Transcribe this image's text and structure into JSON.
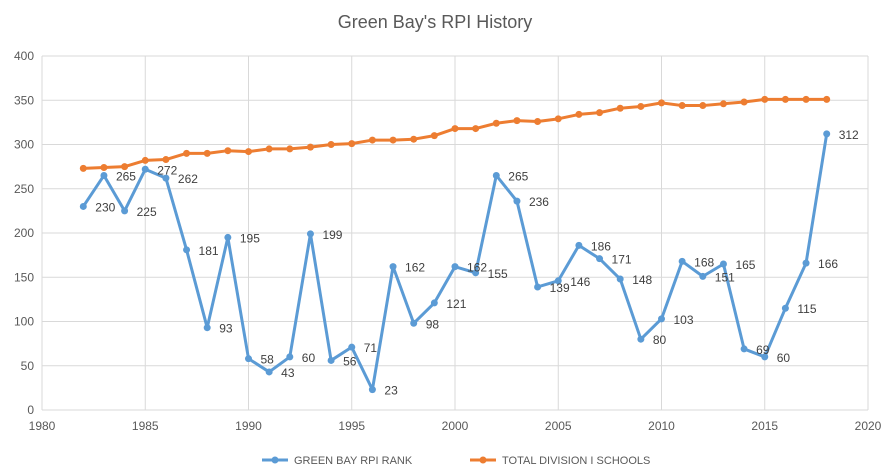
{
  "chart_data": {
    "type": "line",
    "title": "Green Bay's RPI History",
    "xlabel": "",
    "ylabel": "",
    "xlim": [
      1980,
      2020
    ],
    "ylim": [
      0,
      400
    ],
    "x_ticks": [
      1980,
      1985,
      1990,
      1995,
      2000,
      2005,
      2010,
      2015,
      2020
    ],
    "y_ticks": [
      0,
      50,
      100,
      150,
      200,
      250,
      300,
      350,
      400
    ],
    "grid": true,
    "legend_position": "bottom",
    "x": [
      1982,
      1983,
      1984,
      1985,
      1986,
      1987,
      1988,
      1989,
      1990,
      1991,
      1992,
      1993,
      1994,
      1995,
      1996,
      1997,
      1998,
      1999,
      2000,
      2001,
      2002,
      2003,
      2004,
      2005,
      2006,
      2007,
      2008,
      2009,
      2010,
      2011,
      2012,
      2013,
      2014,
      2015,
      2016,
      2017,
      2018
    ],
    "series": [
      {
        "name": "GREEN BAY RPI RANK",
        "color": "#5b9bd5",
        "data_labels": true,
        "values": [
          230,
          265,
          225,
          272,
          262,
          181,
          93,
          195,
          58,
          43,
          60,
          199,
          56,
          71,
          23,
          162,
          98,
          121,
          162,
          155,
          265,
          236,
          139,
          146,
          186,
          171,
          148,
          80,
          103,
          168,
          151,
          165,
          69,
          60,
          115,
          166,
          312
        ]
      },
      {
        "name": "TOTAL DIVISION I SCHOOLS",
        "color": "#ed7d31",
        "data_labels": false,
        "values": [
          273,
          274,
          275,
          282,
          283,
          290,
          290,
          293,
          292,
          295,
          295,
          297,
          300,
          301,
          305,
          305,
          306,
          310,
          318,
          318,
          324,
          327,
          326,
          329,
          334,
          336,
          341,
          343,
          347,
          344,
          344,
          346,
          348,
          351,
          351,
          351,
          351
        ]
      }
    ]
  }
}
